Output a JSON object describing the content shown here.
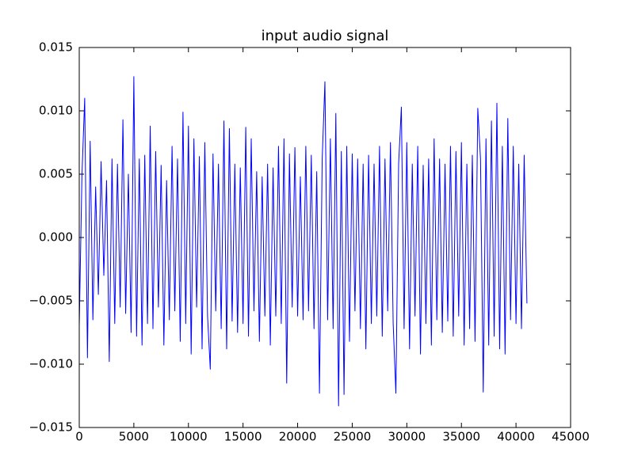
{
  "chart_data": {
    "type": "line",
    "title": "input audio signal",
    "color": "#0000ff",
    "xlim": [
      0,
      45000
    ],
    "xticks": [
      0,
      5000,
      10000,
      15000,
      20000,
      25000,
      30000,
      35000,
      40000,
      45000
    ],
    "ylim": [
      -0.015,
      0.015
    ],
    "yticks": [
      {
        "value": -0.015,
        "label": "−0.015"
      },
      {
        "value": -0.01,
        "label": "−0.010"
      },
      {
        "value": -0.005,
        "label": "−0.005"
      },
      {
        "value": 0,
        "label": "0.000"
      },
      {
        "value": 0.005,
        "label": "0.005"
      },
      {
        "value": 0.01,
        "label": "0.010"
      },
      {
        "value": 0.015,
        "label": "0.015"
      }
    ],
    "x": [
      0,
      250,
      500,
      750,
      1000,
      1250,
      1500,
      1750,
      2000,
      2250,
      2500,
      2750,
      3000,
      3250,
      3500,
      3750,
      4000,
      4250,
      4500,
      4750,
      5000,
      5250,
      5500,
      5750,
      6000,
      6250,
      6500,
      6750,
      7000,
      7250,
      7500,
      7750,
      8000,
      8250,
      8500,
      8750,
      9000,
      9250,
      9500,
      9750,
      10000,
      10250,
      10500,
      10750,
      11000,
      11250,
      11500,
      11750,
      12000,
      12250,
      12500,
      12750,
      13000,
      13250,
      13500,
      13750,
      14000,
      14250,
      14500,
      14750,
      15000,
      15250,
      15500,
      15750,
      16000,
      16250,
      16500,
      16750,
      17000,
      17250,
      17500,
      17750,
      18000,
      18250,
      18500,
      18750,
      19000,
      19250,
      19500,
      19750,
      20000,
      20250,
      20500,
      20750,
      21000,
      21250,
      21500,
      21750,
      22000,
      22250,
      22500,
      22750,
      23000,
      23250,
      23500,
      23750,
      24000,
      24250,
      24500,
      24750,
      25000,
      25250,
      25500,
      25750,
      26000,
      26250,
      26500,
      26750,
      27000,
      27250,
      27500,
      27750,
      28000,
      28250,
      28500,
      28750,
      29000,
      29250,
      29500,
      29750,
      30000,
      30250,
      30500,
      30750,
      31000,
      31250,
      31500,
      31750,
      32000,
      32250,
      32500,
      32750,
      33000,
      33250,
      33500,
      33750,
      34000,
      34250,
      34500,
      34750,
      35000,
      35250,
      35500,
      35750,
      36000,
      36250,
      36500,
      36750,
      37000,
      37250,
      37500,
      37750,
      38000,
      38250,
      38500,
      38750,
      39000,
      39250,
      39500,
      39750,
      40000,
      40250,
      40500,
      40750,
      41000
    ],
    "values": [
      -0.007,
      0.005,
      0.011,
      -0.0095,
      0.0076,
      -0.0065,
      0.004,
      -0.0045,
      0.006,
      -0.003,
      0.0045,
      -0.0098,
      0.0062,
      -0.0068,
      0.0058,
      -0.0055,
      0.0093,
      -0.006,
      0.005,
      -0.0075,
      0.0127,
      -0.0078,
      0.0062,
      -0.0085,
      0.0065,
      -0.0068,
      0.0088,
      -0.0072,
      0.0068,
      -0.0055,
      0.0057,
      -0.0085,
      0.0045,
      -0.0065,
      0.0072,
      -0.0058,
      0.0062,
      -0.0082,
      0.0099,
      -0.0068,
      0.0088,
      -0.0092,
      0.0078,
      -0.0055,
      0.0064,
      -0.0088,
      0.0075,
      -0.0062,
      -0.0104,
      0.0066,
      -0.0058,
      0.0058,
      -0.0072,
      0.0092,
      -0.0088,
      0.0086,
      -0.0066,
      0.0058,
      -0.0075,
      0.0055,
      -0.0068,
      0.0087,
      -0.0078,
      0.0078,
      -0.0058,
      0.0052,
      -0.0082,
      0.0048,
      -0.0062,
      0.0058,
      -0.0085,
      0.0055,
      -0.0062,
      0.0072,
      -0.0068,
      0.0078,
      -0.0115,
      0.0066,
      -0.0055,
      0.0071,
      -0.0062,
      0.0048,
      -0.0065,
      0.0072,
      -0.0058,
      0.0065,
      -0.0072,
      0.0052,
      -0.0123,
      0.0062,
      0.0123,
      -0.0065,
      0.0078,
      -0.0072,
      0.0098,
      -0.0133,
      0.0068,
      -0.0124,
      0.0072,
      -0.0082,
      0.0066,
      -0.0058,
      0.0062,
      -0.0072,
      0.0058,
      -0.0088,
      0.0065,
      -0.0068,
      0.0058,
      -0.0062,
      0.0072,
      -0.0078,
      0.0062,
      -0.0058,
      0.0075,
      -0.0068,
      -0.0123,
      0.0058,
      0.0103,
      -0.0072,
      0.0075,
      -0.0088,
      0.0058,
      -0.0062,
      0.0072,
      -0.0092,
      0.0057,
      -0.0068,
      0.0062,
      -0.0085,
      0.0078,
      -0.0065,
      0.0062,
      -0.0075,
      0.0058,
      -0.0066,
      0.0072,
      -0.0078,
      0.0068,
      -0.0062,
      0.0075,
      -0.0085,
      0.0058,
      -0.0072,
      0.0065,
      -0.0082,
      0.0102,
      0.0062,
      -0.0122,
      0.0078,
      -0.0085,
      0.0092,
      -0.0078,
      0.0106,
      -0.0088,
      0.0072,
      -0.0092,
      0.0094,
      -0.0065,
      0.0072,
      -0.0068,
      0.0058,
      -0.0072,
      0.0065,
      -0.0052
    ]
  }
}
